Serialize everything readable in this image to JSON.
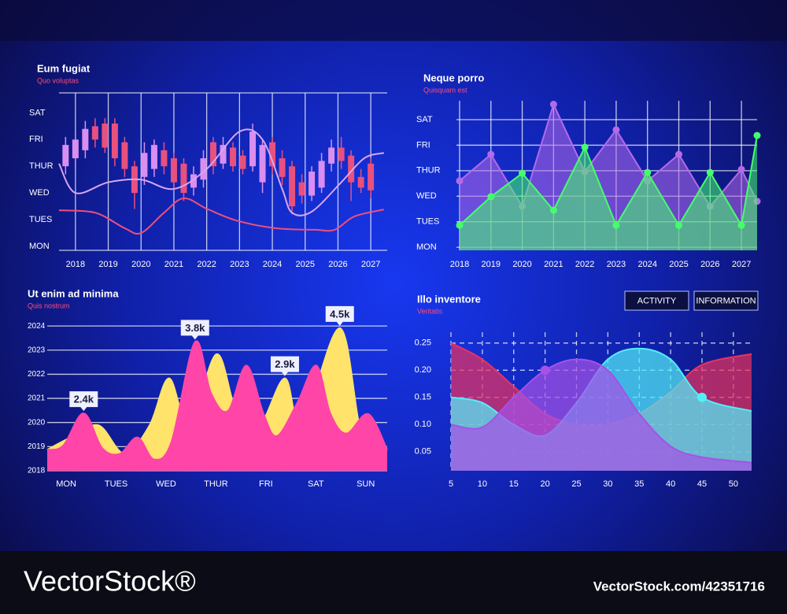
{
  "chart_data": [
    {
      "type": "candlestick",
      "title": "Eum fugiat",
      "subtitle": "Quo voluptas",
      "smooth": true,
      "xlim": [
        2017.5,
        2027.5
      ],
      "xticks": [
        2018,
        2019,
        2020,
        2021,
        2022,
        2023,
        2024,
        2025,
        2026,
        2027
      ],
      "ylim": [
        -0.15,
        5.75
      ],
      "yticks": [
        {
          "value": 0,
          "label": "MON"
        },
        {
          "value": 1,
          "label": "TUES"
        },
        {
          "value": 2,
          "label": "WED"
        },
        {
          "value": 3,
          "label": "THUR"
        },
        {
          "value": 4,
          "label": "FRI"
        },
        {
          "value": 5,
          "label": "SAT"
        }
      ],
      "grid": "x",
      "up_color": "#d98ef0",
      "down_color": "#e8507e",
      "candles": {
        "x": [
          2017.7,
          2018.0,
          2018.3,
          2018.6,
          2018.9,
          2019.2,
          2019.5,
          2019.8,
          2020.1,
          2020.4,
          2020.7,
          2021.0,
          2021.3,
          2021.6,
          2021.9,
          2022.2,
          2022.5,
          2022.8,
          2023.1,
          2023.4,
          2023.7,
          2024.0,
          2024.3,
          2024.6,
          2024.9,
          2025.2,
          2025.5,
          2025.8,
          2026.1,
          2026.4,
          2026.7,
          2027.0
        ],
        "open": [
          3.0,
          3.3,
          3.6,
          4.5,
          4.6,
          4.6,
          3.9,
          3.0,
          2.6,
          2.9,
          3.6,
          3.3,
          3.1,
          2.2,
          2.5,
          3.9,
          3.1,
          3.7,
          3.4,
          3.0,
          2.4,
          3.9,
          3.3,
          3.0,
          2.4,
          1.9,
          2.2,
          3.1,
          3.7,
          3.4,
          2.6,
          3.1
        ],
        "high": [
          4.1,
          4.3,
          4.7,
          4.8,
          4.8,
          4.8,
          4.1,
          3.2,
          3.9,
          4.0,
          3.9,
          3.5,
          3.3,
          3.0,
          3.6,
          4.1,
          4.1,
          3.9,
          3.6,
          4.6,
          4.0,
          4.1,
          3.6,
          3.2,
          2.7,
          3.0,
          3.5,
          4.0,
          4.1,
          3.6,
          2.9,
          3.3
        ],
        "low": [
          2.7,
          3.0,
          3.3,
          3.7,
          3.5,
          3.0,
          2.6,
          1.4,
          2.3,
          2.6,
          2.7,
          2.1,
          1.7,
          1.9,
          2.2,
          2.7,
          2.9,
          2.8,
          2.7,
          2.8,
          2.0,
          2.7,
          2.3,
          1.2,
          1.6,
          1.7,
          2.0,
          2.8,
          2.9,
          1.7,
          2.0,
          1.8
        ],
        "close": [
          3.8,
          4.0,
          4.4,
          4.0,
          3.7,
          3.3,
          2.9,
          2.0,
          3.5,
          3.8,
          3.0,
          2.4,
          2.0,
          2.7,
          3.3,
          3.0,
          3.8,
          3.0,
          2.9,
          4.3,
          3.8,
          3.0,
          2.6,
          1.5,
          1.9,
          2.8,
          3.2,
          3.7,
          3.2,
          2.4,
          2.2,
          2.1
        ]
      },
      "series": [
        {
          "color": "#d9a6f0",
          "x": [
            2017.5,
            2018.0,
            2019.0,
            2020.0,
            2021.0,
            2022.0,
            2023.0,
            2023.7,
            2024.3,
            2024.6,
            2025.2,
            2026.1,
            2026.8,
            2027.4
          ],
          "values": [
            3.1,
            2.0,
            2.4,
            2.5,
            2.15,
            2.9,
            4.3,
            4.0,
            2.15,
            1.26,
            1.3,
            2.4,
            3.3,
            3.5
          ]
        },
        {
          "color": "#ee4f7c",
          "x": [
            2017.5,
            2018.6,
            2019.5,
            2020.0,
            2020.7,
            2021.3,
            2022.0,
            2022.9,
            2024.1,
            2025.3,
            2025.9,
            2026.5,
            2027.4
          ],
          "values": [
            1.35,
            1.26,
            0.68,
            0.5,
            1.26,
            1.8,
            1.41,
            0.97,
            0.68,
            0.62,
            0.62,
            1.12,
            1.38
          ]
        }
      ]
    },
    {
      "type": "area",
      "title": "Neque porro",
      "subtitle": "Quisquam est",
      "smooth": false,
      "markers": true,
      "fill_opacity": 0.55,
      "xlim": [
        2017.9,
        2027.5
      ],
      "xticks": [
        2018,
        2019,
        2020,
        2021,
        2022,
        2023,
        2024,
        2025,
        2026,
        2027
      ],
      "ylim": [
        -0.12,
        5.74
      ],
      "yticks": [
        {
          "value": 0,
          "label": "MON"
        },
        {
          "value": 1,
          "label": "TUES"
        },
        {
          "value": 2,
          "label": "WED"
        },
        {
          "value": 3,
          "label": "THUR"
        },
        {
          "value": 4,
          "label": "FRI"
        },
        {
          "value": 5,
          "label": "SAT"
        }
      ],
      "grid": "both",
      "series": [
        {
          "color": "#b46ae8",
          "x": [
            2018,
            2019,
            2020,
            2021,
            2022,
            2023,
            2024,
            2025,
            2026,
            2027,
            2027.5
          ],
          "values": [
            2.6,
            3.64,
            1.6,
            5.6,
            2.96,
            4.6,
            2.6,
            3.64,
            1.6,
            3.05,
            1.8
          ]
        },
        {
          "color": "#45ff6a",
          "x": [
            2018,
            2019,
            2020,
            2021,
            2022,
            2023,
            2024,
            2025,
            2026,
            2027,
            2027.5
          ],
          "values": [
            0.86,
            1.98,
            2.9,
            1.45,
            3.92,
            0.86,
            2.93,
            0.86,
            2.93,
            0.86,
            4.38
          ]
        }
      ]
    },
    {
      "type": "area",
      "title": "Ut enim ad minima",
      "subtitle": "Quis nostrum",
      "smooth": true,
      "fill_opacity": 1,
      "xlim": [
        -0.38,
        6.43
      ],
      "xticks": [
        {
          "value": 0,
          "label": "MON"
        },
        {
          "value": 1,
          "label": "TUES"
        },
        {
          "value": 2,
          "label": "WED"
        },
        {
          "value": 3,
          "label": "THUR"
        },
        {
          "value": 4,
          "label": "FRI"
        },
        {
          "value": 5,
          "label": "SAT"
        },
        {
          "value": 6,
          "label": "SUN"
        }
      ],
      "ylim": [
        2018,
        2024.2
      ],
      "yticks": [
        2018,
        2019,
        2020,
        2021,
        2022,
        2023,
        2024
      ],
      "grid": "y",
      "series": [
        {
          "color": "#ffe36a",
          "x": [
            -0.38,
            0.09,
            0.65,
            1.17,
            1.67,
            2.06,
            2.46,
            3.01,
            3.4,
            3.87,
            4.38,
            4.72,
            5.48,
            5.92,
            6.43
          ],
          "values": [
            2018.87,
            2019.38,
            2019.88,
            2018.7,
            2019.88,
            2021.83,
            2019.88,
            2022.83,
            2020.55,
            2019.88,
            2021.83,
            2019.88,
            2023.91,
            2019.54,
            2018.87
          ]
        },
        {
          "color": "#ff45a8",
          "x": [
            -0.38,
            -0.06,
            0.35,
            0.72,
            1.07,
            1.43,
            1.76,
            2.11,
            2.58,
            2.9,
            3.24,
            3.61,
            3.95,
            4.22,
            4.63,
            5.01,
            5.29,
            5.61,
            6.05,
            6.43
          ],
          "values": [
            2018.87,
            2019.04,
            2020.38,
            2018.94,
            2018.7,
            2019.38,
            2018.47,
            2019.21,
            2023.34,
            2021.22,
            2020.48,
            2022.36,
            2020.38,
            2019.44,
            2020.82,
            2022.36,
            2020.38,
            2019.54,
            2020.35,
            2018.87
          ]
        }
      ],
      "annotations": [
        {
          "text": "2.4k",
          "x": 0.35,
          "y": 2020.38
        },
        {
          "text": "3.8k",
          "x": 2.58,
          "y": 2023.34
        },
        {
          "text": "2.9k",
          "x": 4.38,
          "y": 2021.83
        },
        {
          "text": "4.5k",
          "x": 5.48,
          "y": 2023.91
        }
      ]
    },
    {
      "type": "area",
      "title": "Illo inventore",
      "subtitle": "Veritatis",
      "smooth": true,
      "fill_opacity": 0.72,
      "grid": "dashed",
      "buttons": [
        "ACTIVITY",
        "INFORMATION"
      ],
      "xlim": [
        5,
        52.9
      ],
      "xticks": [
        5,
        10,
        15,
        20,
        25,
        30,
        35,
        40,
        45,
        50
      ],
      "ylim": [
        0.015,
        0.27
      ],
      "yticks": [
        0.05,
        {
          "value": 0.1,
          "label": "0.10"
        },
        0.15,
        {
          "value": 0.2,
          "label": "0.20"
        },
        0.25
      ],
      "series": [
        {
          "color": "#e8325f",
          "x": [
            5,
            10,
            15,
            20,
            25,
            30,
            35,
            40,
            45,
            52.9
          ],
          "values": [
            0.25,
            0.22,
            0.17,
            0.12,
            0.1,
            0.1,
            0.12,
            0.16,
            0.21,
            0.23
          ]
        },
        {
          "color": "#52eef8",
          "x": [
            5,
            10,
            15,
            20,
            25,
            30,
            35,
            40,
            45,
            52.9
          ],
          "values": [
            0.15,
            0.14,
            0.1,
            0.08,
            0.14,
            0.22,
            0.24,
            0.22,
            0.15,
            0.125
          ],
          "highlights": [
            {
              "x": 45,
              "y": 0.15
            }
          ]
        },
        {
          "color": "#a552e6",
          "x": [
            5,
            10,
            15,
            20,
            25,
            30,
            35,
            40,
            45,
            52.9
          ],
          "values": [
            0.1,
            0.095,
            0.15,
            0.2,
            0.22,
            0.2,
            0.12,
            0.06,
            0.04,
            0.03
          ],
          "highlights": [
            {
              "x": 20,
              "y": 0.2
            }
          ]
        }
      ]
    }
  ],
  "footer": {
    "logo": "VectorStock®",
    "url": "VectorStock.com/42351716"
  }
}
